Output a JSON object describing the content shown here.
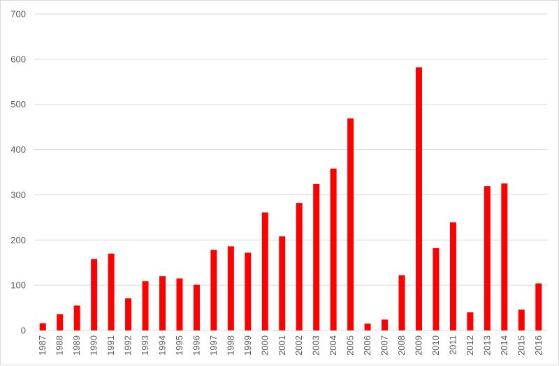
{
  "chart_data": {
    "type": "bar",
    "title": "",
    "xlabel": "",
    "ylabel": "",
    "ylim": [
      0,
      700
    ],
    "yticks": [
      0,
      100,
      200,
      300,
      400,
      500,
      600,
      700
    ],
    "grid": true,
    "legend": "none",
    "bar_color": "#ff0000",
    "categories": [
      "1987",
      "1988",
      "1989",
      "1990",
      "1991",
      "1992",
      "1993",
      "1994",
      "1995",
      "1996",
      "1997",
      "1998",
      "1999",
      "2000",
      "2001",
      "2002",
      "2003",
      "2004",
      "2005",
      "2006",
      "2007",
      "2008",
      "2009",
      "2010",
      "2011",
      "2012",
      "2013",
      "2014",
      "2015",
      "2016"
    ],
    "values": [
      16,
      36,
      55,
      158,
      170,
      71,
      109,
      120,
      115,
      101,
      178,
      186,
      172,
      261,
      208,
      282,
      324,
      358,
      469,
      15,
      24,
      122,
      582,
      182,
      239,
      40,
      319,
      325,
      46,
      104
    ]
  }
}
